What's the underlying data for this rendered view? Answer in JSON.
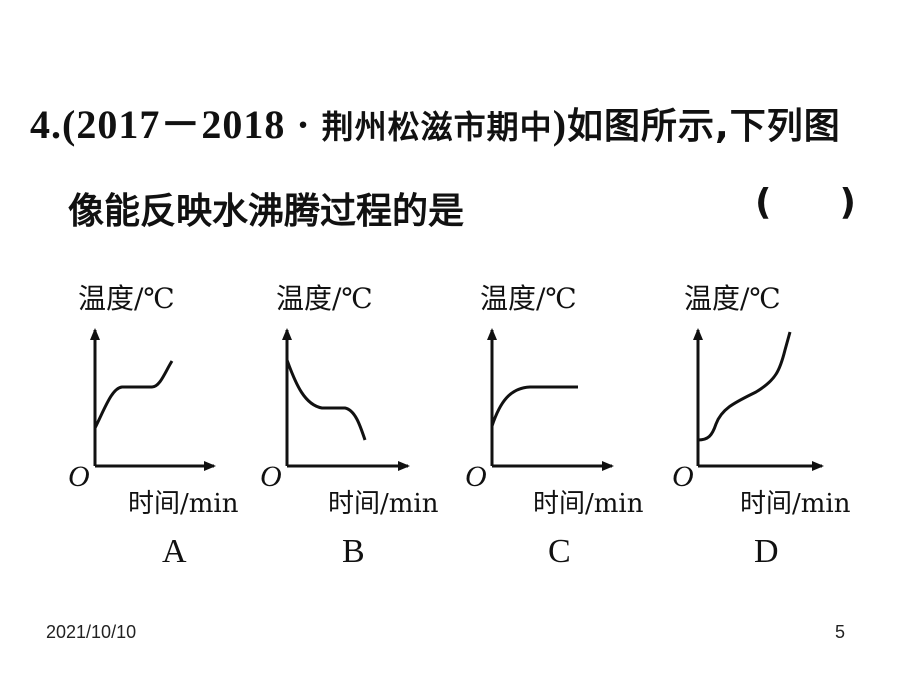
{
  "question": {
    "number": "4.",
    "source_open": "(2017－2018 · ",
    "source_name": "荆州松滋市期中",
    "source_close": ")",
    "text_line1": "如图所示,下列图",
    "text_line2": "像能反映水沸腾过程的是",
    "answer_open": "(",
    "answer_close": ")"
  },
  "graphs": [
    {
      "option": "A",
      "ylabel": "温度/℃",
      "xlabel": "时间/min",
      "origin": "O"
    },
    {
      "option": "B",
      "ylabel": "温度/℃",
      "xlabel": "时间/min",
      "origin": "O"
    },
    {
      "option": "C",
      "ylabel": "温度/℃",
      "xlabel": "时间/min",
      "origin": "O"
    },
    {
      "option": "D",
      "ylabel": "温度/℃",
      "xlabel": "时间/min",
      "origin": "O"
    }
  ],
  "footer": {
    "date": "2021/10/10",
    "page": "5"
  }
}
